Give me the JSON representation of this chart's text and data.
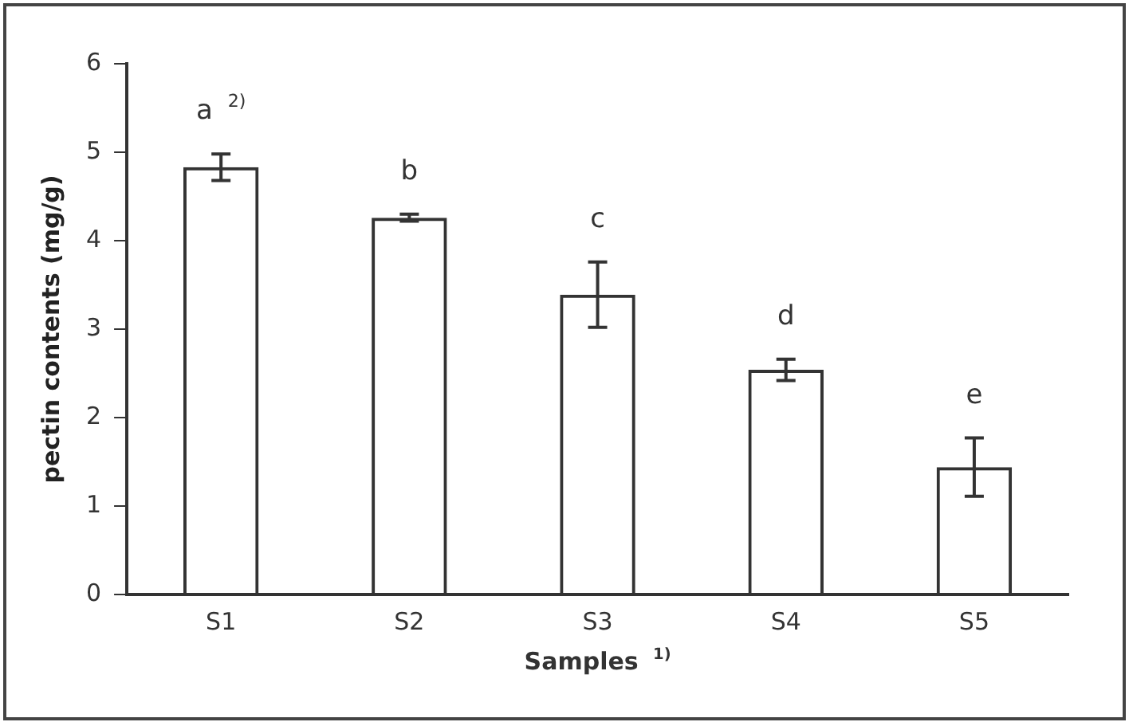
{
  "chart_data": {
    "type": "bar",
    "xlabel": "Samples $^{1)}$",
    "ylabel": "pectin contents (mg/g)",
    "categories": [
      "S1",
      "S2",
      "S3",
      "S4",
      "S5"
    ],
    "values": [
      4.83,
      4.26,
      3.39,
      2.54,
      1.44
    ],
    "errors": [
      0.15,
      0.04,
      0.37,
      0.12,
      0.33
    ],
    "color": "#333333",
    "ylim": [
      0,
      6
    ],
    "yticks": [
      0,
      1,
      2,
      3,
      4,
      5,
      6
    ],
    "grid": false,
    "legend": false,
    "annotations": [
      {
        "text": "a $^{2)}$",
        "x": "S1",
        "y": 4.98
      },
      {
        "text": "b",
        "x": "S2",
        "y": 4.3
      },
      {
        "text": "c",
        "x": "S3",
        "y": 3.76
      },
      {
        "text": "d",
        "x": "S4",
        "y": 2.66
      },
      {
        "text": "e",
        "x": "S5",
        "y": 1.77
      }
    ]
  }
}
